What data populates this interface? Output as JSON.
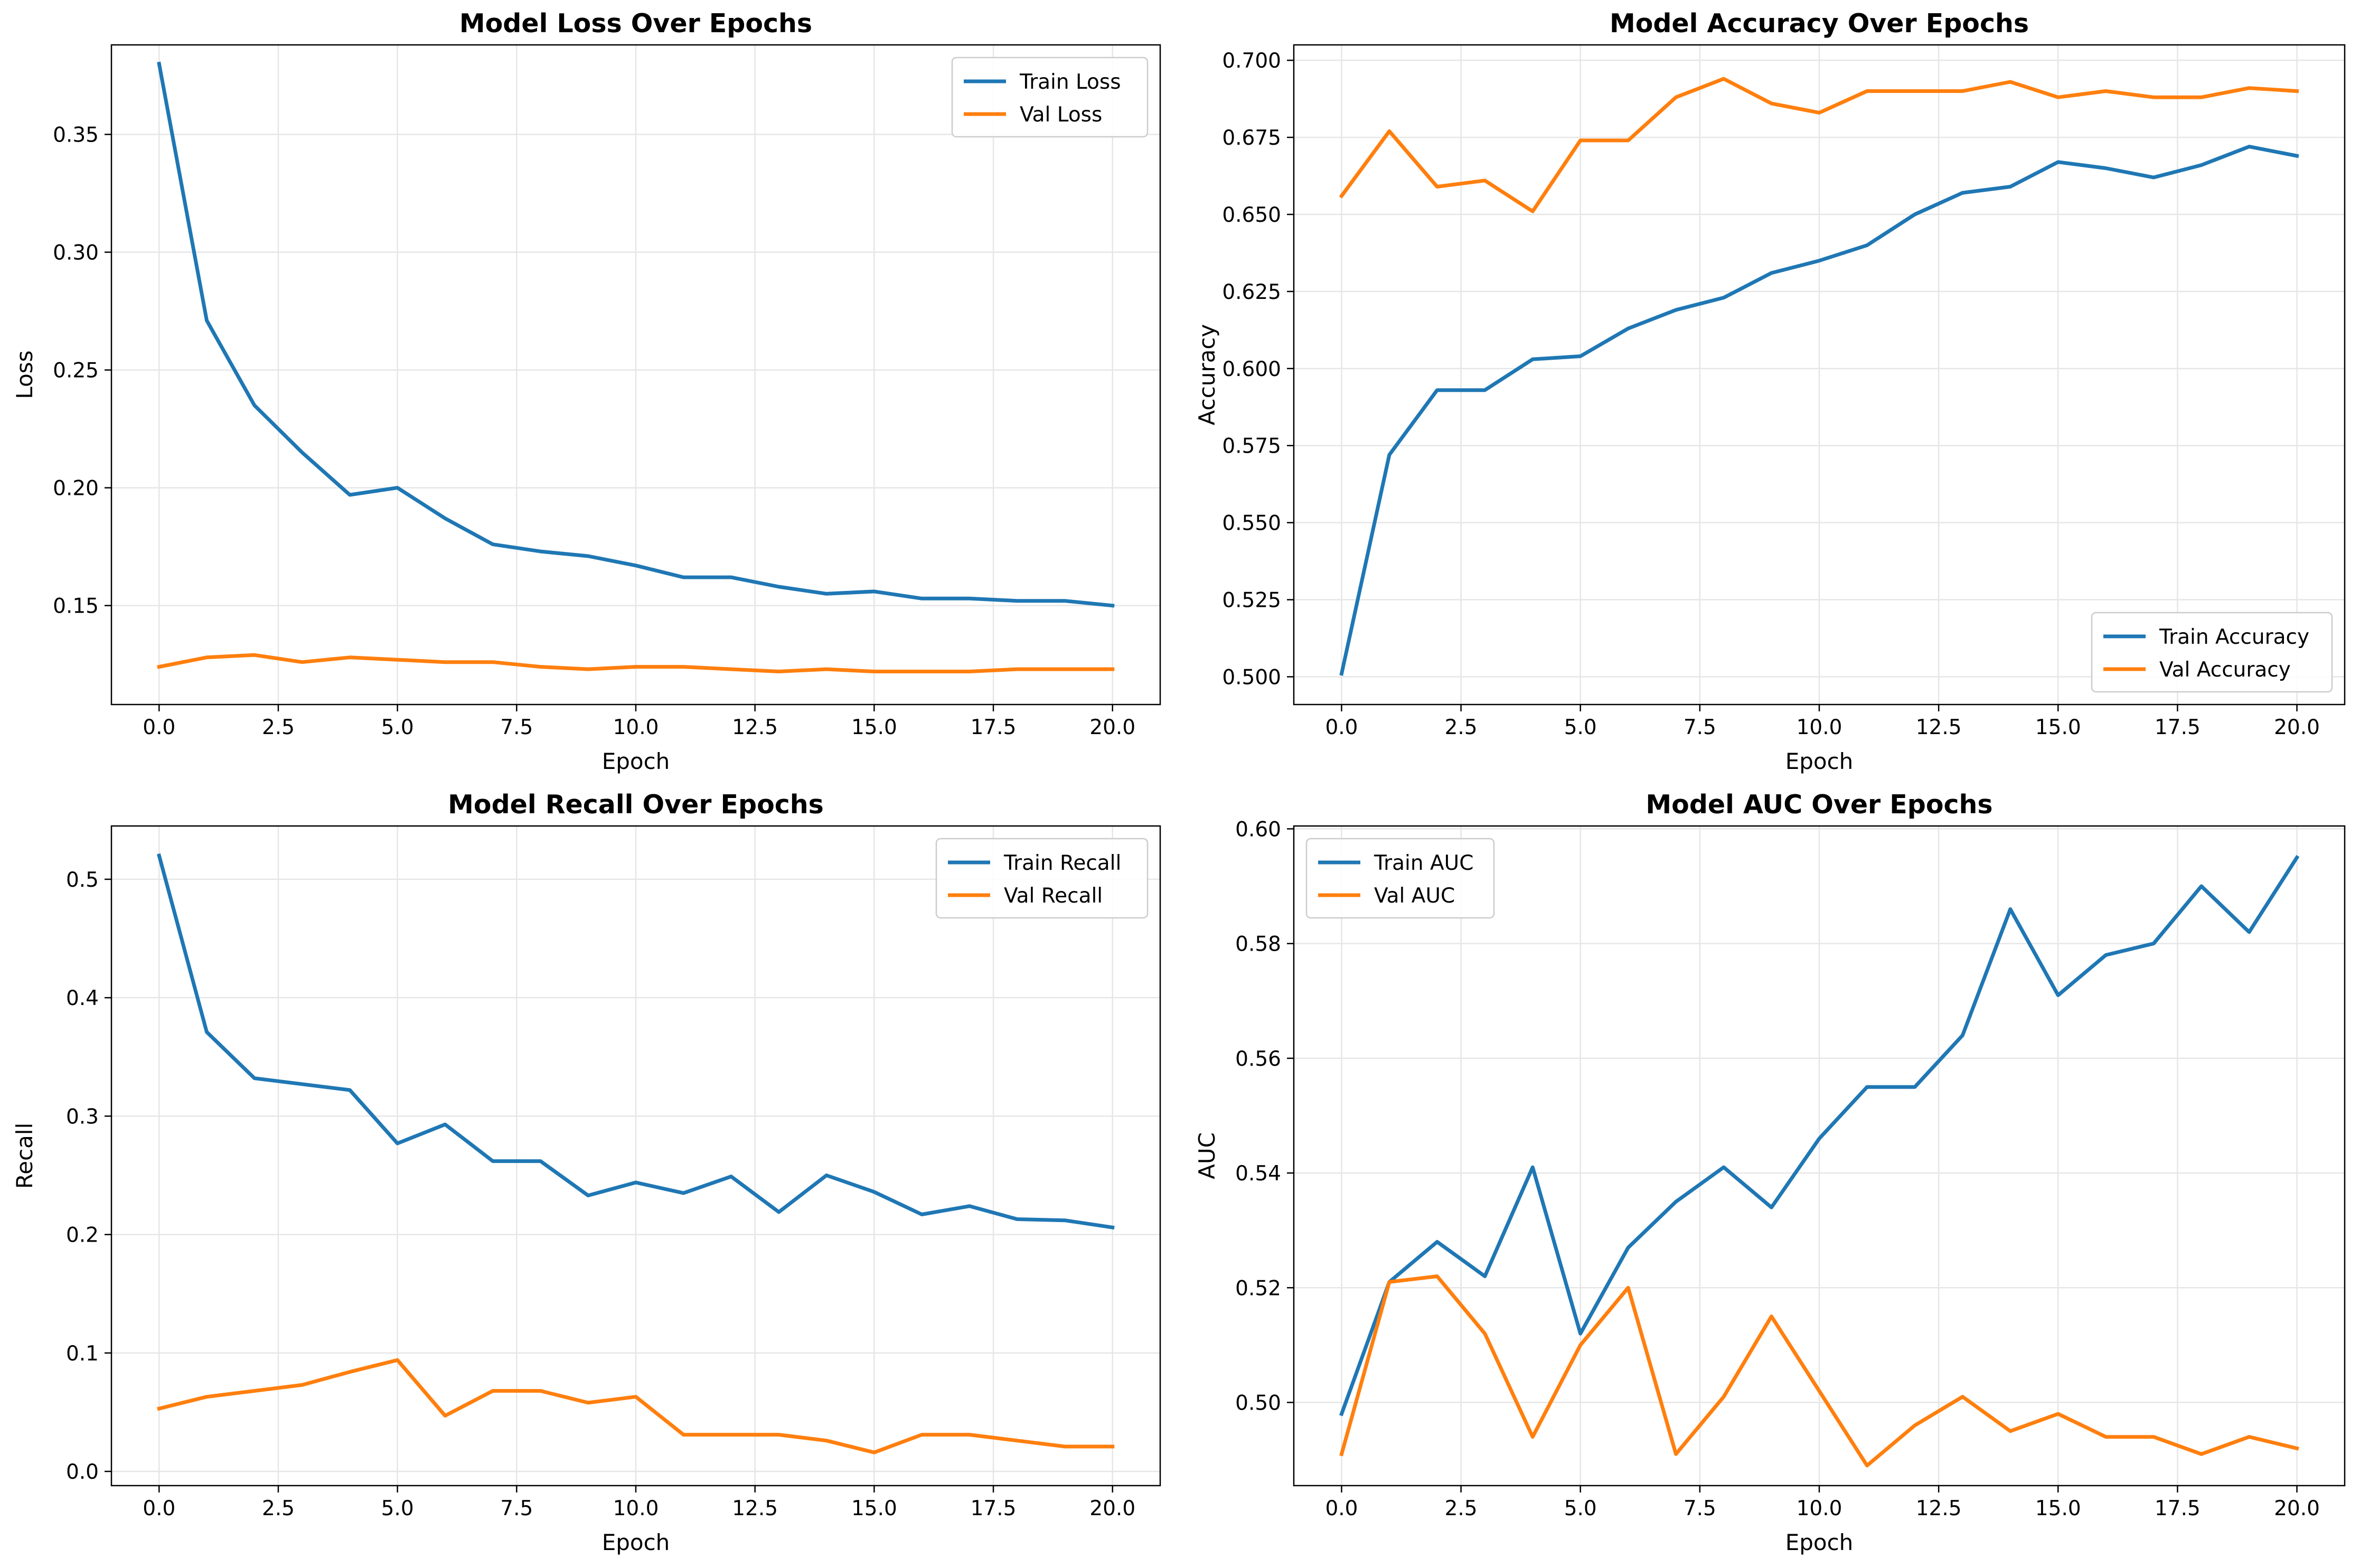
{
  "colors": {
    "train": "#1f77b4",
    "val": "#ff7f0e",
    "grid": "#e6e6e6",
    "frame": "#000000"
  },
  "chart_data": [
    {
      "type": "line",
      "title": "Model Loss Over Epochs",
      "xlabel": "Epoch",
      "ylabel": "Loss",
      "xlim": [
        -1,
        21
      ],
      "ylim": [
        0.108,
        0.388
      ],
      "xticks": [
        0,
        2.5,
        5,
        7.5,
        10,
        12.5,
        15,
        17.5,
        20
      ],
      "xtick_labels": [
        "0.0",
        "2.5",
        "5.0",
        "7.5",
        "10.0",
        "12.5",
        "15.0",
        "17.5",
        "20.0"
      ],
      "yticks": [
        0.15,
        0.2,
        0.25,
        0.3,
        0.35
      ],
      "ytick_labels": [
        "0.15",
        "0.20",
        "0.25",
        "0.30",
        "0.35"
      ],
      "grid": true,
      "legend_position": "top-right",
      "x": [
        0,
        1,
        2,
        3,
        4,
        5,
        6,
        7,
        8,
        9,
        10,
        11,
        12,
        13,
        14,
        15,
        16,
        17,
        18,
        19,
        20
      ],
      "series": [
        {
          "name": "Train Loss",
          "color": "train",
          "values": [
            0.38,
            0.271,
            0.235,
            0.215,
            0.197,
            0.2,
            0.187,
            0.176,
            0.173,
            0.171,
            0.167,
            0.162,
            0.162,
            0.158,
            0.155,
            0.156,
            0.153,
            0.153,
            0.152,
            0.152,
            0.15
          ]
        },
        {
          "name": "Val Loss",
          "color": "val",
          "values": [
            0.124,
            0.128,
            0.129,
            0.126,
            0.128,
            0.127,
            0.126,
            0.126,
            0.124,
            0.123,
            0.124,
            0.124,
            0.123,
            0.122,
            0.123,
            0.122,
            0.122,
            0.122,
            0.123,
            0.123,
            0.123
          ]
        }
      ]
    },
    {
      "type": "line",
      "title": "Model Accuracy Over Epochs",
      "xlabel": "Epoch",
      "ylabel": "Accuracy",
      "xlim": [
        -1,
        21
      ],
      "ylim": [
        0.491,
        0.705
      ],
      "xticks": [
        0,
        2.5,
        5,
        7.5,
        10,
        12.5,
        15,
        17.5,
        20
      ],
      "xtick_labels": [
        "0.0",
        "2.5",
        "5.0",
        "7.5",
        "10.0",
        "12.5",
        "15.0",
        "17.5",
        "20.0"
      ],
      "yticks": [
        0.5,
        0.525,
        0.55,
        0.575,
        0.6,
        0.625,
        0.65,
        0.675,
        0.7
      ],
      "ytick_labels": [
        "0.500",
        "0.525",
        "0.550",
        "0.575",
        "0.600",
        "0.625",
        "0.650",
        "0.675",
        "0.700"
      ],
      "grid": true,
      "legend_position": "bottom-right",
      "x": [
        0,
        1,
        2,
        3,
        4,
        5,
        6,
        7,
        8,
        9,
        10,
        11,
        12,
        13,
        14,
        15,
        16,
        17,
        18,
        19,
        20
      ],
      "series": [
        {
          "name": "Train Accuracy",
          "color": "train",
          "values": [
            0.501,
            0.572,
            0.593,
            0.593,
            0.603,
            0.604,
            0.613,
            0.619,
            0.623,
            0.631,
            0.635,
            0.64,
            0.65,
            0.657,
            0.659,
            0.667,
            0.665,
            0.662,
            0.666,
            0.672,
            0.669
          ]
        },
        {
          "name": "Val Accuracy",
          "color": "val",
          "values": [
            0.656,
            0.677,
            0.659,
            0.661,
            0.651,
            0.674,
            0.674,
            0.688,
            0.694,
            0.686,
            0.683,
            0.69,
            0.69,
            0.69,
            0.693,
            0.688,
            0.69,
            0.688,
            0.688,
            0.691,
            0.69
          ]
        }
      ]
    },
    {
      "type": "line",
      "title": "Model Recall Over Epochs",
      "xlabel": "Epoch",
      "ylabel": "Recall",
      "xlim": [
        -1,
        21
      ],
      "ylim": [
        -0.012,
        0.545
      ],
      "xticks": [
        0,
        2.5,
        5,
        7.5,
        10,
        12.5,
        15,
        17.5,
        20
      ],
      "xtick_labels": [
        "0.0",
        "2.5",
        "5.0",
        "7.5",
        "10.0",
        "12.5",
        "15.0",
        "17.5",
        "20.0"
      ],
      "yticks": [
        0.0,
        0.1,
        0.2,
        0.3,
        0.4,
        0.5
      ],
      "ytick_labels": [
        "0.0",
        "0.1",
        "0.2",
        "0.3",
        "0.4",
        "0.5"
      ],
      "grid": true,
      "legend_position": "top-right",
      "x": [
        0,
        1,
        2,
        3,
        4,
        5,
        6,
        7,
        8,
        9,
        10,
        11,
        12,
        13,
        14,
        15,
        16,
        17,
        18,
        19,
        20
      ],
      "series": [
        {
          "name": "Train Recall",
          "color": "train",
          "values": [
            0.52,
            0.371,
            0.332,
            0.327,
            0.322,
            0.277,
            0.293,
            0.262,
            0.262,
            0.233,
            0.244,
            0.235,
            0.249,
            0.219,
            0.25,
            0.236,
            0.217,
            0.224,
            0.213,
            0.212,
            0.206
          ]
        },
        {
          "name": "Val Recall",
          "color": "val",
          "values": [
            0.053,
            0.063,
            0.068,
            0.073,
            0.084,
            0.094,
            0.047,
            0.068,
            0.068,
            0.058,
            0.063,
            0.031,
            0.031,
            0.031,
            0.026,
            0.016,
            0.031,
            0.031,
            0.026,
            0.021,
            0.021
          ]
        }
      ]
    },
    {
      "type": "line",
      "title": "Model AUC Over Epochs",
      "xlabel": "Epoch",
      "ylabel": "AUC",
      "xlim": [
        -1,
        21
      ],
      "ylim": [
        0.4855,
        0.6005
      ],
      "xticks": [
        0,
        2.5,
        5,
        7.5,
        10,
        12.5,
        15,
        17.5,
        20
      ],
      "xtick_labels": [
        "0.0",
        "2.5",
        "5.0",
        "7.5",
        "10.0",
        "12.5",
        "15.0",
        "17.5",
        "20.0"
      ],
      "yticks": [
        0.5,
        0.52,
        0.54,
        0.56,
        0.58,
        0.6
      ],
      "ytick_labels": [
        "0.50",
        "0.52",
        "0.54",
        "0.56",
        "0.58",
        "0.60"
      ],
      "grid": true,
      "legend_position": "top-left",
      "x": [
        0,
        1,
        2,
        3,
        4,
        5,
        6,
        7,
        8,
        9,
        10,
        11,
        12,
        13,
        14,
        15,
        16,
        17,
        18,
        19,
        20
      ],
      "series": [
        {
          "name": "Train AUC",
          "color": "train",
          "values": [
            0.498,
            0.521,
            0.528,
            0.522,
            0.541,
            0.512,
            0.527,
            0.535,
            0.541,
            0.534,
            0.546,
            0.555,
            0.555,
            0.564,
            0.586,
            0.571,
            0.578,
            0.58,
            0.59,
            0.582,
            0.595
          ]
        },
        {
          "name": "Val AUC",
          "color": "val",
          "values": [
            0.491,
            0.521,
            0.522,
            0.512,
            0.494,
            0.51,
            0.52,
            0.491,
            0.501,
            0.515,
            0.502,
            0.489,
            0.496,
            0.501,
            0.495,
            0.498,
            0.494,
            0.494,
            0.491,
            0.494,
            0.492
          ]
        }
      ]
    }
  ]
}
